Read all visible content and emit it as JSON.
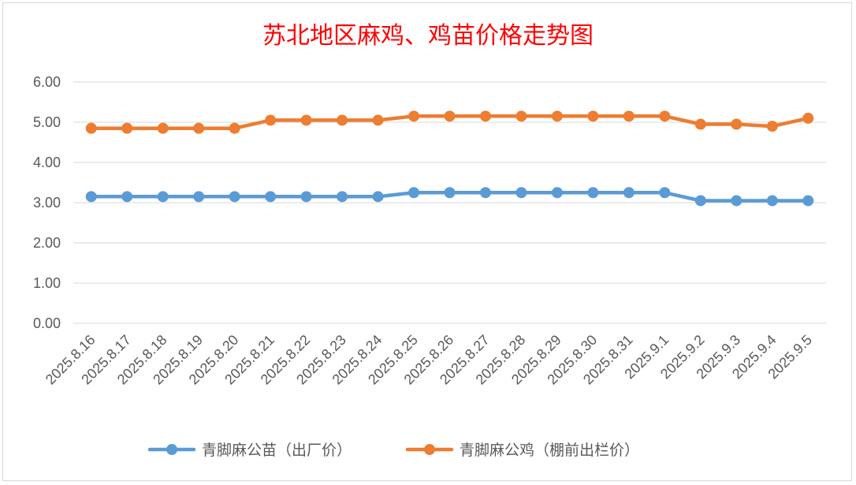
{
  "chart_data": {
    "type": "line",
    "title": "苏北地区麻鸡、鸡苗价格走势图",
    "xlabel": "",
    "ylabel": "",
    "ylim": [
      0,
      6
    ],
    "yticks": [
      "0.00",
      "1.00",
      "2.00",
      "3.00",
      "4.00",
      "5.00",
      "6.00"
    ],
    "grid": true,
    "legend_position": "bottom",
    "categories": [
      "2025.8.16",
      "2025.8.17",
      "2025.8.18",
      "2025.8.19",
      "2025.8.20",
      "2025.8.21",
      "2025.8.22",
      "2025.8.23",
      "2025.8.24",
      "2025.8.25",
      "2025.8.26",
      "2025.8.27",
      "2025.8.28",
      "2025.8.29",
      "2025.8.30",
      "2025.8.31",
      "2025.9.1",
      "2025.9.2",
      "2025.9.3",
      "2025.9.4",
      "2025.9.5"
    ],
    "series": [
      {
        "name": "青脚麻公苗（出厂价）",
        "color": "#5b9bd5",
        "values": [
          3.15,
          3.15,
          3.15,
          3.15,
          3.15,
          3.15,
          3.15,
          3.15,
          3.15,
          3.25,
          3.25,
          3.25,
          3.25,
          3.25,
          3.25,
          3.25,
          3.25,
          3.05,
          3.05,
          3.05,
          3.05
        ]
      },
      {
        "name": "青脚麻公鸡（棚前出栏价）",
        "color": "#ed7d31",
        "values": [
          4.85,
          4.85,
          4.85,
          4.85,
          4.85,
          5.05,
          5.05,
          5.05,
          5.05,
          5.15,
          5.15,
          5.15,
          5.15,
          5.15,
          5.15,
          5.15,
          5.15,
          4.95,
          4.95,
          4.9,
          5.1
        ]
      }
    ]
  }
}
